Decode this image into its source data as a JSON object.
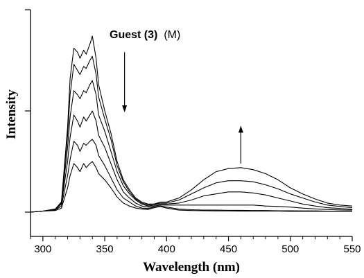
{
  "chart_data": {
    "type": "line",
    "xlabel": "Wavelength (nm)",
    "ylabel": "Intensity",
    "xlim": [
      290,
      550
    ],
    "ylim": [
      0,
      1
    ],
    "x_ticks": [
      300,
      350,
      400,
      450,
      500,
      550
    ],
    "y_ticks_labeled": false,
    "annotation": {
      "bold": "Guest (3)",
      "normal": "(M)"
    },
    "arrows": [
      {
        "x": 366,
        "y_from": 0.79,
        "y_to": 0.5,
        "direction": "down"
      },
      {
        "x": 460,
        "y_from": 0.24,
        "y_to": 0.42,
        "direction": "up"
      }
    ],
    "series": [
      {
        "x": [
          290,
          300,
          310,
          315,
          320,
          322,
          325,
          328,
          330,
          333,
          335,
          338,
          340,
          343,
          345,
          350,
          355,
          360,
          365,
          370,
          375,
          380,
          385,
          390,
          395,
          400,
          410,
          420,
          430,
          440,
          450,
          460,
          470,
          480,
          490,
          500,
          510,
          520,
          530,
          540,
          550
        ],
        "y": [
          0,
          0.005,
          0.015,
          0.05,
          0.42,
          0.66,
          0.81,
          0.79,
          0.76,
          0.8,
          0.78,
          0.83,
          0.87,
          0.76,
          0.63,
          0.5,
          0.39,
          0.25,
          0.16,
          0.11,
          0.07,
          0.05,
          0.04,
          0.04,
          0.05,
          0.05,
          0.07,
          0.11,
          0.16,
          0.2,
          0.215,
          0.22,
          0.21,
          0.19,
          0.16,
          0.12,
          0.09,
          0.065,
          0.045,
          0.035,
          0.03
        ]
      },
      {
        "x": [
          290,
          300,
          310,
          315,
          320,
          322,
          325,
          328,
          330,
          333,
          335,
          338,
          340,
          343,
          345,
          350,
          355,
          360,
          365,
          370,
          375,
          380,
          385,
          390,
          395,
          400,
          410,
          420,
          430,
          440,
          450,
          460,
          470,
          480,
          490,
          500,
          510,
          520,
          530,
          540,
          550
        ],
        "y": [
          0,
          0.005,
          0.015,
          0.05,
          0.38,
          0.58,
          0.73,
          0.7,
          0.68,
          0.72,
          0.71,
          0.75,
          0.77,
          0.68,
          0.57,
          0.46,
          0.36,
          0.23,
          0.15,
          0.1,
          0.065,
          0.045,
          0.035,
          0.04,
          0.045,
          0.045,
          0.06,
          0.09,
          0.12,
          0.145,
          0.155,
          0.155,
          0.15,
          0.135,
          0.115,
          0.09,
          0.07,
          0.05,
          0.035,
          0.028,
          0.022
        ]
      },
      {
        "x": [
          290,
          300,
          310,
          315,
          320,
          322,
          325,
          328,
          330,
          333,
          335,
          338,
          340,
          343,
          345,
          350,
          355,
          360,
          365,
          370,
          375,
          380,
          385,
          390,
          395,
          400,
          410,
          420,
          430,
          440,
          450,
          460,
          470,
          480,
          490,
          500,
          510,
          520,
          530,
          540,
          550
        ],
        "y": [
          0,
          0.005,
          0.015,
          0.045,
          0.32,
          0.47,
          0.6,
          0.58,
          0.56,
          0.6,
          0.59,
          0.63,
          0.65,
          0.58,
          0.48,
          0.4,
          0.3,
          0.2,
          0.13,
          0.09,
          0.06,
          0.04,
          0.03,
          0.035,
          0.04,
          0.04,
          0.045,
          0.06,
          0.08,
          0.09,
          0.1,
          0.1,
          0.095,
          0.085,
          0.07,
          0.055,
          0.04,
          0.03,
          0.022,
          0.018,
          0.014
        ]
      },
      {
        "x": [
          290,
          300,
          310,
          315,
          320,
          322,
          325,
          328,
          330,
          333,
          335,
          338,
          340,
          343,
          345,
          350,
          355,
          360,
          365,
          370,
          375,
          380,
          385,
          390,
          395,
          400,
          410,
          420,
          430,
          440,
          450,
          460,
          470,
          480,
          490,
          500,
          510,
          520,
          530,
          540,
          550
        ],
        "y": [
          0,
          0.005,
          0.012,
          0.04,
          0.25,
          0.37,
          0.48,
          0.45,
          0.42,
          0.47,
          0.45,
          0.48,
          0.5,
          0.45,
          0.38,
          0.32,
          0.24,
          0.16,
          0.1,
          0.07,
          0.045,
          0.03,
          0.025,
          0.03,
          0.035,
          0.035,
          0.035,
          0.035,
          0.035,
          0.035,
          0.035,
          0.035,
          0.035,
          0.03,
          0.028,
          0.025,
          0.02,
          0.016,
          0.013,
          0.011,
          0.01
        ]
      },
      {
        "x": [
          290,
          300,
          310,
          315,
          320,
          322,
          325,
          328,
          330,
          333,
          335,
          338,
          340,
          343,
          345,
          350,
          355,
          360,
          365,
          370,
          375,
          380,
          385,
          390,
          395,
          400,
          410,
          420,
          430,
          440,
          450,
          460,
          470,
          480,
          490,
          500,
          510,
          520,
          530,
          540,
          550
        ],
        "y": [
          0,
          0.005,
          0.01,
          0.03,
          0.18,
          0.26,
          0.35,
          0.33,
          0.3,
          0.34,
          0.33,
          0.35,
          0.36,
          0.33,
          0.28,
          0.23,
          0.17,
          0.11,
          0.07,
          0.05,
          0.03,
          0.02,
          0.018,
          0.025,
          0.03,
          0.025,
          0.015,
          0.012,
          0.01,
          0.01,
          0.009,
          0.009,
          0.008,
          0.008,
          0.007,
          0.007,
          0.006,
          0.006,
          0.005,
          0.005,
          0.005
        ]
      },
      {
        "x": [
          290,
          300,
          310,
          315,
          320,
          322,
          325,
          328,
          330,
          333,
          335,
          338,
          340,
          343,
          345,
          350,
          355,
          360,
          365,
          370,
          375,
          380,
          385,
          390,
          395,
          400,
          410,
          420,
          430,
          440,
          450,
          460,
          470,
          480,
          490,
          500,
          510,
          520,
          530,
          540,
          550
        ],
        "y": [
          0,
          0.005,
          0.008,
          0.02,
          0.12,
          0.18,
          0.24,
          0.22,
          0.2,
          0.24,
          0.22,
          0.24,
          0.25,
          0.22,
          0.19,
          0.16,
          0.12,
          0.075,
          0.045,
          0.03,
          0.02,
          0.015,
          0.013,
          0.022,
          0.028,
          0.02,
          0.01,
          0.008,
          0.007,
          0.006,
          0.006,
          0.005,
          0.005,
          0.005,
          0.005,
          0.004,
          0.004,
          0.004,
          0.004,
          0.004,
          0.004
        ]
      }
    ],
    "colors": {
      "line": "#000000",
      "background": "#ffffff"
    }
  }
}
